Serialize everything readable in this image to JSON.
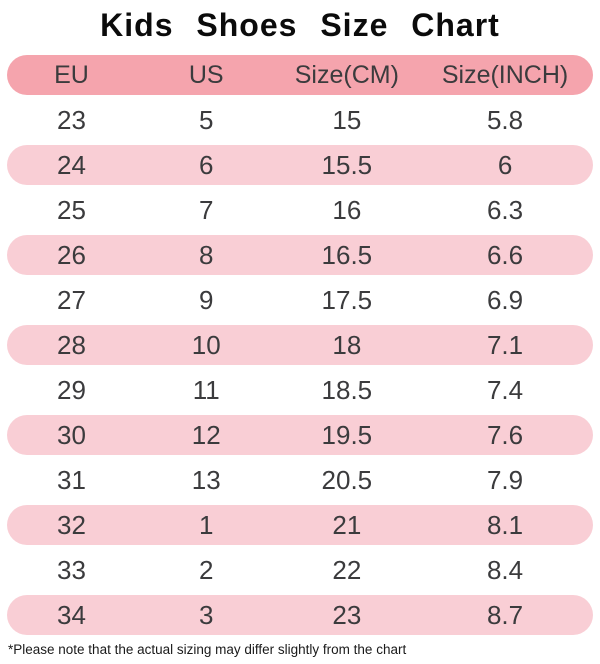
{
  "title": "Kids  Shoes  Size Chart",
  "table": {
    "headers": [
      "EU",
      "US",
      "Size(CM)",
      "Size(INCH)"
    ],
    "rows": [
      [
        "23",
        "5",
        "15",
        "5.8"
      ],
      [
        "24",
        "6",
        "15.5",
        "6"
      ],
      [
        "25",
        "7",
        "16",
        "6.3"
      ],
      [
        "26",
        "8",
        "16.5",
        "6.6"
      ],
      [
        "27",
        "9",
        "17.5",
        "6.9"
      ],
      [
        "28",
        "10",
        "18",
        "7.1"
      ],
      [
        "29",
        "11",
        "18.5",
        "7.4"
      ],
      [
        "30",
        "12",
        "19.5",
        "7.6"
      ],
      [
        "31",
        "13",
        "20.5",
        "7.9"
      ],
      [
        "32",
        "1",
        "21",
        "8.1"
      ],
      [
        "33",
        "2",
        "22",
        "8.4"
      ],
      [
        "34",
        "3",
        "23",
        "8.7"
      ]
    ]
  },
  "footnote": "*Please note that the actual sizing may differ slightly from the chart",
  "colors": {
    "header_bg": "#f5a4ad",
    "alt_row_bg": "#f9ced5",
    "cell_text": "#3b3b3d",
    "title_text": "#0b0b0b",
    "note_text": "#1a1a1a"
  },
  "chart_data": {
    "type": "table",
    "title": "Kids Shoes Size Chart",
    "columns": [
      "EU",
      "US",
      "Size(CM)",
      "Size(INCH)"
    ],
    "rows": [
      [
        23,
        5,
        15,
        5.8
      ],
      [
        24,
        6,
        15.5,
        6
      ],
      [
        25,
        7,
        16,
        6.3
      ],
      [
        26,
        8,
        16.5,
        6.6
      ],
      [
        27,
        9,
        17.5,
        6.9
      ],
      [
        28,
        10,
        18,
        7.1
      ],
      [
        29,
        11,
        18.5,
        7.4
      ],
      [
        30,
        12,
        19.5,
        7.6
      ],
      [
        31,
        13,
        20.5,
        7.9
      ],
      [
        32,
        1,
        21,
        8.1
      ],
      [
        33,
        2,
        22,
        8.4
      ],
      [
        34,
        3,
        23,
        8.7
      ]
    ],
    "layout_hints": {
      "header_style": "dark-pink pill, fully rounded",
      "row_striping": "alternating white / light-pink pills starting with white",
      "note": "*Please note that the actual sizing may differ slightly from the chart"
    }
  }
}
